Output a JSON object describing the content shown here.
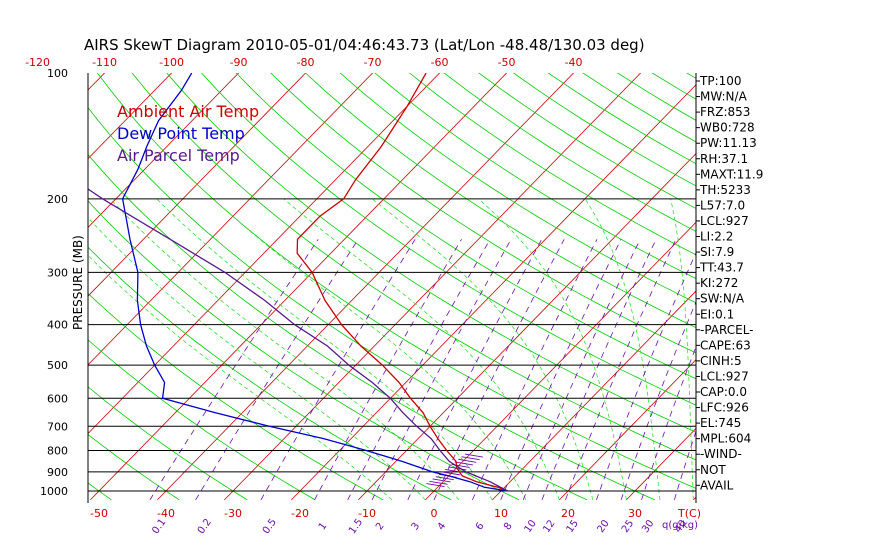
{
  "title": "AIRS SkewT Diagram 2010-05-01/04:46:43.73 (Lat/Lon -48.48/130.03 deg)",
  "colors": {
    "ambient": "#cc0000",
    "dewpoint": "#0000cc",
    "parcel": "#551a8b",
    "isotherm": "#cc0000",
    "dry_adiabat": "#00cc00",
    "moist_adiabat": "#33dd33",
    "mixing_ratio": "#6a0dad",
    "isobar": "#000000"
  },
  "chart_data": {
    "type": "line",
    "title": "AIRS SkewT Diagram 2010-05-01/04:46:43.73 (Lat/Lon -48.48/130.03 deg)",
    "ylabel": "PRESSURE (MB)",
    "xlabel": "T(C)",
    "mixing_ratio_label": "q(g/kg)",
    "y_scale": "log-pressure",
    "ylim": [
      1000,
      100
    ],
    "pressure_ticks": [
      100,
      200,
      300,
      400,
      500,
      600,
      700,
      800,
      900,
      1000
    ],
    "isobar_lines": [
      200,
      300,
      400,
      500,
      600,
      700,
      800,
      900,
      1000
    ],
    "temp_top_ticks": [
      -120,
      -110,
      -100,
      -90,
      -80,
      -70,
      -60,
      -50,
      -40
    ],
    "temp_bottom_ticks": [
      -50,
      -40,
      -30,
      -20,
      -10,
      0,
      10,
      20,
      30
    ],
    "mixing_ratio_ticks": [
      "0.1",
      "0.2",
      "0.5",
      "1",
      "1.5",
      "2",
      "3",
      "4",
      "6",
      "8",
      "10",
      "12",
      "15",
      "20",
      "25",
      "30",
      "40"
    ],
    "legend": [
      {
        "label": "Ambient Air Temp",
        "color": "#cc0000"
      },
      {
        "label": "Dew Point Temp",
        "color": "#0000cc"
      },
      {
        "label": "Air Parcel Temp",
        "color": "#551a8b"
      }
    ],
    "series": [
      {
        "name": "Ambient Air Temp",
        "points": [
          {
            "p": 1000,
            "t": 11
          },
          {
            "p": 980,
            "t": 9
          },
          {
            "p": 950,
            "t": 5
          },
          {
            "p": 920,
            "t": 2
          },
          {
            "p": 880,
            "t": 0
          },
          {
            "p": 850,
            "t": -1
          },
          {
            "p": 800,
            "t": -4
          },
          {
            "p": 750,
            "t": -7
          },
          {
            "p": 700,
            "t": -10
          },
          {
            "p": 650,
            "t": -13
          },
          {
            "p": 600,
            "t": -17
          },
          {
            "p": 550,
            "t": -21
          },
          {
            "p": 500,
            "t": -26
          },
          {
            "p": 450,
            "t": -32
          },
          {
            "p": 400,
            "t": -38
          },
          {
            "p": 350,
            "t": -44
          },
          {
            "p": 300,
            "t": -50
          },
          {
            "p": 270,
            "t": -55
          },
          {
            "p": 250,
            "t": -57
          },
          {
            "p": 220,
            "t": -57
          },
          {
            "p": 200,
            "t": -56
          },
          {
            "p": 180,
            "t": -57
          },
          {
            "p": 150,
            "t": -58
          },
          {
            "p": 120,
            "t": -60
          },
          {
            "p": 100,
            "t": -62
          }
        ]
      },
      {
        "name": "Dew Point Temp",
        "points": [
          {
            "p": 1000,
            "t": 11
          },
          {
            "p": 980,
            "t": 7
          },
          {
            "p": 950,
            "t": 4
          },
          {
            "p": 920,
            "t": 0
          },
          {
            "p": 900,
            "t": -3
          },
          {
            "p": 850,
            "t": -9
          },
          {
            "p": 800,
            "t": -16
          },
          {
            "p": 750,
            "t": -24
          },
          {
            "p": 700,
            "t": -34
          },
          {
            "p": 650,
            "t": -44
          },
          {
            "p": 600,
            "t": -54
          },
          {
            "p": 550,
            "t": -56
          },
          {
            "p": 500,
            "t": -60
          },
          {
            "p": 450,
            "t": -64
          },
          {
            "p": 400,
            "t": -68
          },
          {
            "p": 350,
            "t": -72
          },
          {
            "p": 300,
            "t": -76
          },
          {
            "p": 250,
            "t": -82
          },
          {
            "p": 220,
            "t": -86
          },
          {
            "p": 200,
            "t": -89
          },
          {
            "p": 170,
            "t": -91
          },
          {
            "p": 150,
            "t": -93
          },
          {
            "p": 130,
            "t": -95
          },
          {
            "p": 110,
            "t": -96
          },
          {
            "p": 100,
            "t": -97
          }
        ]
      },
      {
        "name": "Air Parcel Temp",
        "points": [
          {
            "p": 1000,
            "t": 11
          },
          {
            "p": 950,
            "t": 7
          },
          {
            "p": 900,
            "t": 2
          },
          {
            "p": 850,
            "t": -2
          },
          {
            "p": 800,
            "t": -5
          },
          {
            "p": 750,
            "t": -8
          },
          {
            "p": 700,
            "t": -12
          },
          {
            "p": 650,
            "t": -16
          },
          {
            "p": 600,
            "t": -20
          },
          {
            "p": 550,
            "t": -25
          },
          {
            "p": 500,
            "t": -31
          },
          {
            "p": 450,
            "t": -37
          },
          {
            "p": 400,
            "t": -45
          },
          {
            "p": 350,
            "t": -53
          },
          {
            "p": 300,
            "t": -63
          },
          {
            "p": 250,
            "t": -76
          },
          {
            "p": 200,
            "t": -92
          },
          {
            "p": 180,
            "t": -99
          },
          {
            "p": 150,
            "t": -111
          },
          {
            "p": 130,
            "t": -121
          },
          {
            "p": 118,
            "t": -128
          }
        ]
      }
    ]
  },
  "indices": [
    "TP:100",
    "MW:N/A",
    "FRZ:853",
    "WB0:728",
    "PW:11.13",
    "RH:37.1",
    "MAXT:11.9",
    "TH:5233",
    "L57:7.0",
    "LCL:927",
    "LI:2.2",
    "SI:7.9",
    "TT:43.7",
    "KI:272",
    "SW:N/A",
    "EI:0.1",
    "-PARCEL-",
    "CAPE:63",
    "CINH:5",
    "LCL:927",
    "CAP:0.0",
    "LFC:926",
    "EL:745",
    "MPL:604",
    "-WIND-",
    "NOT",
    "AVAIL"
  ]
}
